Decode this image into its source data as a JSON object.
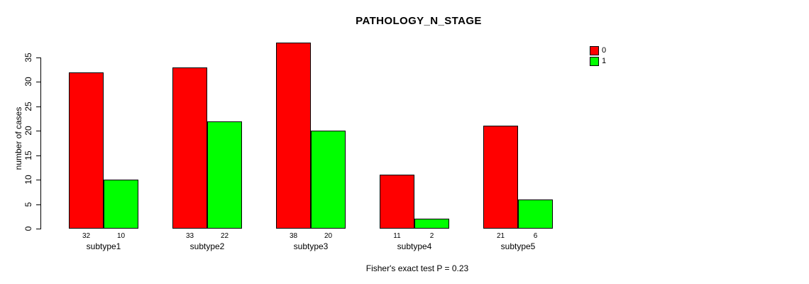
{
  "chart_data": {
    "type": "bar",
    "title": "PATHOLOGY_N_STAGE",
    "ylabel": "number of cases",
    "xlabel": "",
    "footer": "Fisher's exact test P = 0.23",
    "categories": [
      "subtype1",
      "subtype2",
      "subtype3",
      "subtype4",
      "subtype5"
    ],
    "series": [
      {
        "name": "0",
        "color": "#FF0000",
        "values": [
          32,
          33,
          38,
          11,
          21
        ]
      },
      {
        "name": "1",
        "color": "#00FF00",
        "values": [
          10,
          22,
          20,
          2,
          6
        ]
      }
    ],
    "yticks": [
      0,
      5,
      10,
      15,
      20,
      25,
      30,
      35
    ],
    "ylim": [
      0,
      35
    ],
    "grid": false,
    "legend_position": "top-right",
    "bar_border_color": "#000000",
    "background_color": "#FFFFFF"
  }
}
